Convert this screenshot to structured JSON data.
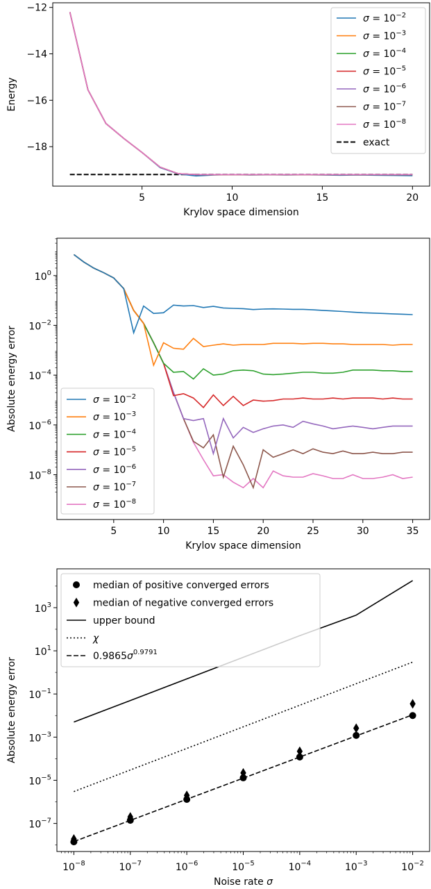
{
  "chart_data": [
    {
      "type": "line",
      "xlabel": "Krylov space dimension",
      "ylabel": "Energy",
      "xlim": [
        0.05,
        20.95
      ],
      "ylim": [
        -19.7,
        -11.8
      ],
      "xticks": [
        5,
        10,
        15,
        20
      ],
      "yticks": [
        -18,
        -16,
        -14,
        -12
      ],
      "legend_position": "top-right",
      "x": [
        1,
        2,
        3,
        4,
        5,
        6,
        7,
        8,
        9,
        10,
        11,
        12,
        13,
        14,
        15,
        16,
        17,
        18,
        19,
        20
      ],
      "series": [
        {
          "name": "σ = 10⁻²",
          "color": "#1f77b4",
          "values": [
            -12.2,
            -15.55,
            -17.0,
            -17.65,
            -18.25,
            -18.9,
            -19.17,
            -19.26,
            -19.22,
            -19.2,
            -19.22,
            -19.21,
            -19.22,
            -19.21,
            -19.22,
            -19.23,
            -19.22,
            -19.23,
            -19.24,
            -19.25
          ]
        },
        {
          "name": "σ = 10⁻³",
          "color": "#ff7f0e",
          "values": [
            -12.2,
            -15.55,
            -17.0,
            -17.65,
            -18.25,
            -18.88,
            -19.16,
            -19.2,
            -19.21,
            -19.2,
            -19.21,
            -19.2,
            -19.21,
            -19.2,
            -19.21,
            -19.2,
            -19.21,
            -19.2,
            -19.21,
            -19.21
          ]
        },
        {
          "name": "σ = 10⁻⁴",
          "color": "#2ca02c",
          "values": [
            -12.2,
            -15.55,
            -17.0,
            -17.65,
            -18.25,
            -18.88,
            -19.16,
            -19.2,
            -19.2,
            -19.2,
            -19.2,
            -19.2,
            -19.2,
            -19.2,
            -19.2,
            -19.2,
            -19.2,
            -19.2,
            -19.2,
            -19.2
          ]
        },
        {
          "name": "σ = 10⁻⁵",
          "color": "#d62728",
          "values": [
            -12.2,
            -15.55,
            -17.0,
            -17.65,
            -18.25,
            -18.88,
            -19.16,
            -19.2,
            -19.2,
            -19.2,
            -19.2,
            -19.2,
            -19.2,
            -19.2,
            -19.2,
            -19.2,
            -19.2,
            -19.2,
            -19.2,
            -19.2
          ]
        },
        {
          "name": "σ = 10⁻⁶",
          "color": "#9467bd",
          "values": [
            -12.2,
            -15.55,
            -17.0,
            -17.65,
            -18.25,
            -18.88,
            -19.16,
            -19.2,
            -19.2,
            -19.2,
            -19.2,
            -19.2,
            -19.2,
            -19.2,
            -19.2,
            -19.2,
            -19.2,
            -19.2,
            -19.2,
            -19.2
          ]
        },
        {
          "name": "σ = 10⁻⁷",
          "color": "#8c564b",
          "values": [
            -12.2,
            -15.55,
            -17.0,
            -17.65,
            -18.25,
            -18.88,
            -19.16,
            -19.2,
            -19.2,
            -19.2,
            -19.2,
            -19.2,
            -19.2,
            -19.2,
            -19.2,
            -19.2,
            -19.2,
            -19.2,
            -19.2,
            -19.2
          ]
        },
        {
          "name": "σ = 10⁻⁸",
          "color": "#e377c2",
          "values": [
            -12.2,
            -15.55,
            -17.0,
            -17.65,
            -18.25,
            -18.88,
            -19.16,
            -19.2,
            -19.2,
            -19.2,
            -19.2,
            -19.2,
            -19.2,
            -19.2,
            -19.2,
            -19.2,
            -19.2,
            -19.2,
            -19.2,
            -19.2
          ]
        }
      ],
      "reference": {
        "name": "exact",
        "value": -19.2,
        "style": "dashed",
        "color": "#000000"
      }
    },
    {
      "type": "line",
      "xlabel": "Krylov space dimension",
      "ylabel": "Absolute energy error",
      "yscale": "log",
      "xlim": [
        -0.7,
        36.7
      ],
      "ylim_log10": [
        -9.8,
        1.5
      ],
      "xticks": [
        5,
        10,
        15,
        20,
        25,
        30,
        35
      ],
      "yticks": [
        "10⁰",
        "10⁻²",
        "10⁻⁴",
        "10⁻⁶",
        "10⁻⁸"
      ],
      "ytick_log10": [
        0,
        -2,
        -4,
        -6,
        -8
      ],
      "legend_position": "lower-left",
      "x": [
        1,
        2,
        3,
        4,
        5,
        6,
        7,
        8,
        9,
        10,
        11,
        12,
        13,
        14,
        15,
        16,
        17,
        18,
        19,
        20,
        21,
        22,
        23,
        24,
        25,
        26,
        27,
        28,
        29,
        30,
        31,
        32,
        33,
        34,
        35
      ],
      "series": [
        {
          "name": "σ = 10⁻²",
          "color": "#1f77b4",
          "values": [
            7,
            3.5,
            2,
            1.3,
            0.8,
            0.3,
            0.005,
            0.06,
            0.03,
            0.032,
            0.065,
            0.06,
            0.062,
            0.052,
            0.058,
            0.05,
            0.048,
            0.047,
            0.043,
            0.045,
            0.046,
            0.045,
            0.044,
            0.044,
            0.042,
            0.04,
            0.038,
            0.036,
            0.034,
            0.032,
            0.031,
            0.03,
            0.029,
            0.028,
            0.027
          ]
        },
        {
          "name": "σ = 10⁻³",
          "color": "#ff7f0e",
          "values": [
            7,
            3.5,
            2,
            1.3,
            0.8,
            0.3,
            0.04,
            0.012,
            0.00025,
            0.002,
            0.0012,
            0.0011,
            0.003,
            0.0014,
            0.0016,
            0.0018,
            0.0016,
            0.0017,
            0.0017,
            0.0017,
            0.0019,
            0.0019,
            0.0019,
            0.0018,
            0.0019,
            0.0019,
            0.0018,
            0.0018,
            0.0017,
            0.0017,
            0.0017,
            0.0017,
            0.0016,
            0.0017,
            0.0017
          ]
        },
        {
          "name": "σ = 10⁻⁴",
          "color": "#2ca02c",
          "values": [
            7,
            3.5,
            2,
            1.3,
            0.8,
            0.3,
            0.04,
            0.012,
            0.002,
            0.0003,
            0.00013,
            0.00014,
            7e-05,
            0.00018,
            0.0001,
            0.00011,
            0.00015,
            0.00016,
            0.00015,
            0.00011,
            0.000105,
            0.00011,
            0.00012,
            0.00013,
            0.00013,
            0.00012,
            0.00012,
            0.00013,
            0.00016,
            0.00016,
            0.00016,
            0.00015,
            0.00015,
            0.00014,
            0.00014
          ]
        },
        {
          "name": "σ = 10⁻⁵",
          "color": "#d62728",
          "values": [
            7,
            3.5,
            2,
            1.3,
            0.8,
            0.3,
            0.04,
            0.012,
            0.002,
            0.0003,
            1.5e-05,
            1.8e-05,
            1.2e-05,
            5e-06,
            1.6e-05,
            6e-06,
            1.4e-05,
            6e-06,
            1e-05,
            9e-06,
            9.5e-06,
            1.1e-05,
            1.1e-05,
            1.2e-05,
            1.1e-05,
            1.1e-05,
            1.2e-05,
            1.1e-05,
            1.2e-05,
            1.2e-05,
            1.2e-05,
            1.1e-05,
            1.2e-05,
            1.1e-05,
            1.1e-05
          ]
        },
        {
          "name": "σ = 10⁻⁶",
          "color": "#9467bd",
          "values": [
            7,
            3.5,
            2,
            1.3,
            0.8,
            0.3,
            0.04,
            0.012,
            0.002,
            0.0003,
            2e-05,
            1.8e-06,
            1.5e-06,
            1.8e-06,
            7e-08,
            1.8e-06,
            3e-07,
            8e-07,
            5e-07,
            7e-07,
            9e-07,
            1e-06,
            8e-07,
            1.4e-06,
            1.1e-06,
            9e-07,
            7e-07,
            8e-07,
            9e-07,
            8e-07,
            7e-07,
            8e-07,
            9e-07,
            9e-07,
            9e-07
          ]
        },
        {
          "name": "σ = 10⁻⁷",
          "color": "#8c564b",
          "values": [
            7,
            3.5,
            2,
            1.3,
            0.8,
            0.3,
            0.04,
            0.012,
            0.002,
            0.0003,
            2e-05,
            1.8e-06,
            2.2e-07,
            1.2e-07,
            4e-07,
            8e-09,
            1.4e-07,
            2.5e-08,
            3e-09,
            1e-07,
            5e-08,
            7e-08,
            1e-07,
            7e-08,
            1.1e-07,
            8e-08,
            7e-08,
            9e-08,
            7e-08,
            7e-08,
            8e-08,
            7e-08,
            7e-08,
            8e-08,
            8e-08
          ]
        },
        {
          "name": "σ = 10⁻⁸",
          "color": "#e377c2",
          "values": [
            7,
            3.5,
            2,
            1.3,
            0.8,
            0.3,
            0.04,
            0.012,
            0.002,
            0.0003,
            2e-05,
            1.8e-06,
            2e-07,
            4e-08,
            9e-09,
            1e-08,
            5e-09,
            3e-09,
            7e-09,
            3e-09,
            1.4e-08,
            9e-09,
            8e-09,
            8e-09,
            1.1e-08,
            9e-09,
            7e-09,
            7e-09,
            1e-08,
            7e-09,
            7e-09,
            8e-09,
            1e-08,
            7e-09,
            8e-09
          ]
        }
      ]
    },
    {
      "type": "scatter",
      "xlabel": "Noise rate σ",
      "ylabel": "Absolute energy error",
      "xscale": "log",
      "yscale": "log",
      "xlim_log10": [
        -8.3,
        -1.7
      ],
      "ylim_log10": [
        -8.3,
        4.8
      ],
      "xticks": [
        "10⁻⁸",
        "10⁻⁷",
        "10⁻⁶",
        "10⁻⁵",
        "10⁻⁴",
        "10⁻³",
        "10⁻²"
      ],
      "xtick_log10": [
        -8,
        -7,
        -6,
        -5,
        -4,
        -3,
        -2
      ],
      "yticks": [
        "10³",
        "10¹",
        "10⁻¹",
        "10⁻³",
        "10⁻⁵",
        "10⁻⁷"
      ],
      "ytick_log10": [
        3,
        1,
        -1,
        -3,
        -5,
        -7
      ],
      "legend_position": "top-left",
      "legend": [
        "median of positive converged errors",
        "median of negative converged errors",
        "upper bound",
        "χ",
        "0.9865 σ^0.9791"
      ],
      "fit_label_base": "0.9865",
      "fit_label_sigma": "σ",
      "fit_label_exp": "0.9791",
      "x": [
        1e-08,
        1e-07,
        1e-06,
        1e-05,
        0.0001,
        0.001,
        0.01
      ],
      "positive_medians": [
        1.4e-08,
        1.4e-07,
        1.3e-06,
        1.3e-05,
        0.00012,
        0.0012,
        0.01
      ],
      "negative_medians": [
        1.9e-08,
        2e-07,
        2e-06,
        2.2e-05,
        0.00022,
        0.0026,
        0.035
      ],
      "upper_bound": [
        0.005,
        0.05,
        0.5,
        5,
        50,
        450,
        18000
      ],
      "chi": [
        3e-06,
        3e-05,
        0.0003,
        0.003,
        0.03,
        0.3,
        3
      ],
      "fit": {
        "a": 0.9865,
        "b": 0.9791
      }
    }
  ]
}
